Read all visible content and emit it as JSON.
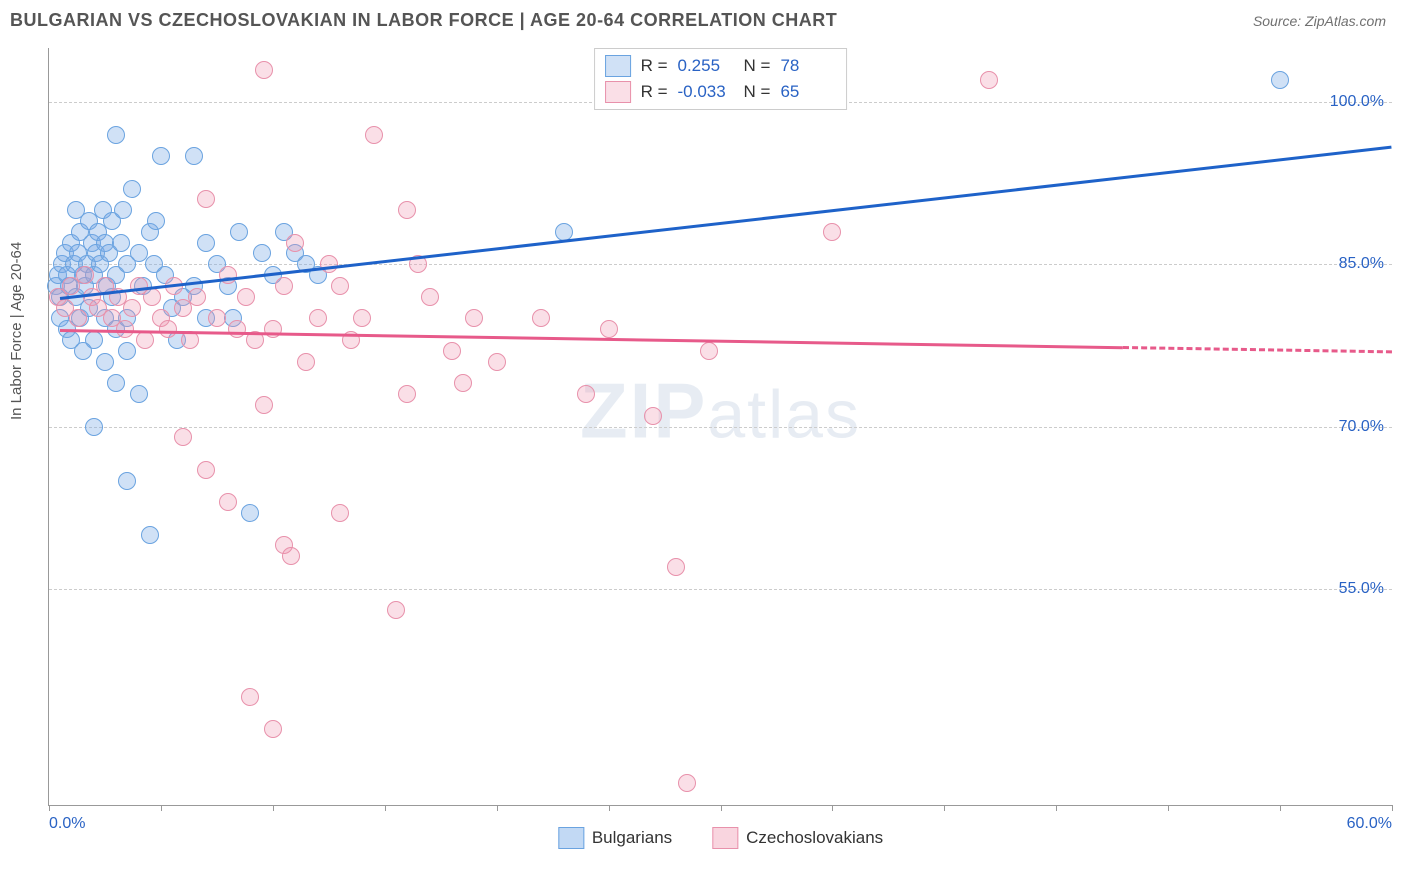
{
  "header": {
    "title": "BULGARIAN VS CZECHOSLOVAKIAN IN LABOR FORCE | AGE 20-64 CORRELATION CHART",
    "source": "Source: ZipAtlas.com"
  },
  "chart": {
    "type": "scatter",
    "ylabel": "In Labor Force | Age 20-64",
    "watermark_bold": "ZIP",
    "watermark_rest": "atlas",
    "background_color": "#ffffff",
    "grid_color": "#cccccc",
    "axis_color": "#999999",
    "label_color": "#2962c4",
    "xlim": [
      0,
      60
    ],
    "ylim": [
      35,
      105
    ],
    "x_ticks": [
      0,
      5,
      10,
      15,
      20,
      25,
      30,
      35,
      40,
      45,
      50,
      55,
      60
    ],
    "x_tick_labels": {
      "0": "0.0%",
      "60": "60.0%"
    },
    "y_ticks": [
      55,
      70,
      85,
      100
    ],
    "y_tick_labels": {
      "55": "55.0%",
      "70": "70.0%",
      "85": "85.0%",
      "100": "100.0%"
    },
    "point_radius": 8,
    "point_stroke_width": 1.8,
    "series": [
      {
        "name": "Bulgarians",
        "fill": "rgba(120,170,230,0.35)",
        "stroke": "#6aa3e0",
        "R_label": "R =",
        "R_value": "0.255",
        "N_label": "N =",
        "N_value": "78",
        "trend": {
          "x1": 0.5,
          "y1": 82.0,
          "x2": 60,
          "y2": 96.0,
          "color": "#1e62c9",
          "width": 3,
          "dash_from_x": null
        },
        "points": [
          [
            0.3,
            83
          ],
          [
            0.4,
            84
          ],
          [
            0.5,
            82
          ],
          [
            0.6,
            85
          ],
          [
            0.7,
            86
          ],
          [
            0.8,
            84
          ],
          [
            0.9,
            83
          ],
          [
            1.0,
            87
          ],
          [
            1.1,
            85
          ],
          [
            1.2,
            82
          ],
          [
            1.3,
            86
          ],
          [
            1.4,
            88
          ],
          [
            1.5,
            84
          ],
          [
            1.6,
            83
          ],
          [
            1.7,
            85
          ],
          [
            1.8,
            89
          ],
          [
            1.9,
            87
          ],
          [
            2.0,
            84
          ],
          [
            2.1,
            86
          ],
          [
            2.2,
            88
          ],
          [
            2.3,
            85
          ],
          [
            2.4,
            90
          ],
          [
            2.5,
            87
          ],
          [
            2.6,
            83
          ],
          [
            2.7,
            86
          ],
          [
            2.8,
            82
          ],
          [
            3.0,
            84
          ],
          [
            3.2,
            87
          ],
          [
            3.5,
            85
          ],
          [
            3.7,
            92
          ],
          [
            3.0,
            97
          ],
          [
            4.0,
            86
          ],
          [
            4.2,
            83
          ],
          [
            4.5,
            88
          ],
          [
            4.7,
            85
          ],
          [
            5.0,
            95
          ],
          [
            5.2,
            84
          ],
          [
            5.5,
            81
          ],
          [
            5.7,
            78
          ],
          [
            2.0,
            78
          ],
          [
            2.5,
            76
          ],
          [
            3.0,
            74
          ],
          [
            3.5,
            77
          ],
          [
            4.0,
            73
          ],
          [
            2.0,
            70
          ],
          [
            3.5,
            65
          ],
          [
            4.5,
            60
          ],
          [
            6.5,
            95
          ],
          [
            7.0,
            87
          ],
          [
            7.5,
            85
          ],
          [
            8.0,
            83
          ],
          [
            8.5,
            88
          ],
          [
            9.0,
            62
          ],
          [
            9.5,
            86
          ],
          [
            10.0,
            84
          ],
          [
            10.5,
            88
          ],
          [
            11.0,
            86
          ],
          [
            11.5,
            85
          ],
          [
            12.0,
            84
          ],
          [
            8.2,
            80
          ],
          [
            2.5,
            80
          ],
          [
            3.0,
            79
          ],
          [
            3.5,
            80
          ],
          [
            1.4,
            80
          ],
          [
            1.8,
            81
          ],
          [
            0.5,
            80
          ],
          [
            0.8,
            79
          ],
          [
            1.0,
            78
          ],
          [
            1.5,
            77
          ],
          [
            6.0,
            82
          ],
          [
            6.5,
            83
          ],
          [
            7.0,
            80
          ],
          [
            2.8,
            89
          ],
          [
            3.3,
            90
          ],
          [
            4.8,
            89
          ],
          [
            23.0,
            88
          ],
          [
            55.0,
            102
          ],
          [
            1.2,
            90
          ]
        ]
      },
      {
        "name": "Czechoslovakians",
        "fill": "rgba(240,150,175,0.30)",
        "stroke": "#e891ab",
        "R_label": "R =",
        "R_value": "-0.033",
        "N_label": "N =",
        "N_value": "65",
        "trend": {
          "x1": 0.5,
          "y1": 79.0,
          "x2": 60,
          "y2": 77.0,
          "color": "#e75a8a",
          "width": 3,
          "dash_from_x": 48
        },
        "points": [
          [
            0.4,
            82
          ],
          [
            0.7,
            81
          ],
          [
            1.0,
            83
          ],
          [
            1.3,
            80
          ],
          [
            1.6,
            84
          ],
          [
            1.9,
            82
          ],
          [
            2.2,
            81
          ],
          [
            2.5,
            83
          ],
          [
            2.8,
            80
          ],
          [
            3.1,
            82
          ],
          [
            3.4,
            79
          ],
          [
            3.7,
            81
          ],
          [
            4.0,
            83
          ],
          [
            4.3,
            78
          ],
          [
            4.6,
            82
          ],
          [
            5.0,
            80
          ],
          [
            5.3,
            79
          ],
          [
            5.6,
            83
          ],
          [
            6.0,
            81
          ],
          [
            6.3,
            78
          ],
          [
            6.6,
            82
          ],
          [
            7.0,
            91
          ],
          [
            7.5,
            80
          ],
          [
            8.0,
            84
          ],
          [
            8.4,
            79
          ],
          [
            8.8,
            82
          ],
          [
            9.2,
            78
          ],
          [
            9.6,
            103
          ],
          [
            10.0,
            79
          ],
          [
            10.5,
            83
          ],
          [
            11.0,
            87
          ],
          [
            11.5,
            76
          ],
          [
            12.0,
            80
          ],
          [
            12.5,
            85
          ],
          [
            13.0,
            83
          ],
          [
            13.5,
            78
          ],
          [
            14.0,
            80
          ],
          [
            6.0,
            69
          ],
          [
            7.0,
            66
          ],
          [
            8.0,
            63
          ],
          [
            10.5,
            59
          ],
          [
            10.8,
            58
          ],
          [
            13.0,
            62
          ],
          [
            14.5,
            97
          ],
          [
            15.5,
            53
          ],
          [
            16.0,
            90
          ],
          [
            16.5,
            85
          ],
          [
            17.0,
            82
          ],
          [
            18.0,
            77
          ],
          [
            19.0,
            80
          ],
          [
            20.0,
            76
          ],
          [
            22.0,
            80
          ],
          [
            24.0,
            73
          ],
          [
            25.0,
            79
          ],
          [
            27.0,
            71
          ],
          [
            28.0,
            57
          ],
          [
            28.5,
            37
          ],
          [
            29.5,
            77
          ],
          [
            35.0,
            88
          ],
          [
            42.0,
            102
          ],
          [
            16.0,
            73
          ],
          [
            18.5,
            74
          ],
          [
            10.0,
            42
          ],
          [
            9.0,
            45
          ],
          [
            9.6,
            72
          ]
        ]
      }
    ],
    "bottom_legend": [
      {
        "label": "Bulgarians",
        "fill": "rgba(120,170,230,0.45)",
        "stroke": "#6aa3e0"
      },
      {
        "label": "Czechoslovakians",
        "fill": "rgba(240,150,175,0.40)",
        "stroke": "#e891ab"
      }
    ]
  }
}
